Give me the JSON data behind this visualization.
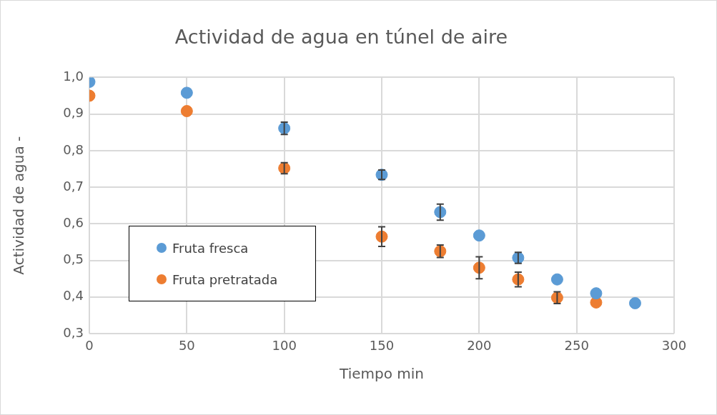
{
  "chart_data": {
    "type": "scatter",
    "title": "Actividad de agua en túnel de aire",
    "xlabel": "Tiempo min",
    "ylabel": "Actividad de agua -",
    "xlim": [
      0,
      300
    ],
    "xticks": [
      0,
      50,
      100,
      150,
      200,
      250,
      300
    ],
    "ylim": [
      0.3,
      1.0
    ],
    "yticks": [
      {
        "value": 0.3,
        "label": "0,3"
      },
      {
        "value": 0.4,
        "label": "0,4"
      },
      {
        "value": 0.5,
        "label": "0,5"
      },
      {
        "value": 0.6,
        "label": "0,6"
      },
      {
        "value": 0.7,
        "label": "0,7"
      },
      {
        "value": 0.8,
        "label": "0,8"
      },
      {
        "value": 0.9,
        "label": "0,9"
      },
      {
        "value": 1.0,
        "label": "1,0"
      }
    ],
    "grid": true,
    "legend": "left",
    "marker": "circle",
    "series": [
      {
        "name": "Fruta fresca",
        "color": "#5b9bd5",
        "x": [
          0,
          50,
          100,
          150,
          180,
          200,
          220,
          240,
          260,
          280
        ],
        "values": [
          0.988,
          0.958,
          0.861,
          0.734,
          0.632,
          0.568,
          0.507,
          0.448,
          0.41,
          0.383
        ],
        "errors": [
          null,
          null,
          0.017,
          0.013,
          0.022,
          null,
          0.015,
          null,
          null,
          null
        ]
      },
      {
        "name": "Fruta pretratada",
        "color": "#ed7d31",
        "x": [
          0,
          50,
          100,
          150,
          180,
          200,
          220,
          240,
          260
        ],
        "values": [
          0.95,
          0.908,
          0.752,
          0.565,
          0.525,
          0.48,
          0.448,
          0.398,
          0.385
        ],
        "errors": [
          null,
          null,
          0.015,
          0.027,
          0.017,
          0.03,
          0.02,
          0.016,
          null
        ]
      }
    ]
  }
}
